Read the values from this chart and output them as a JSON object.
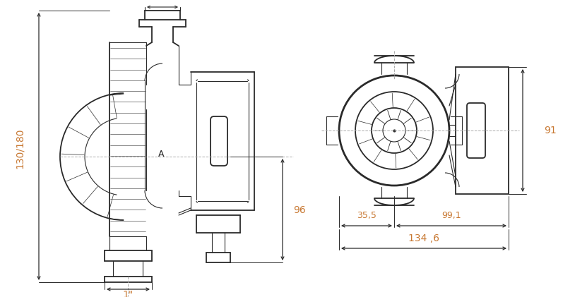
{
  "bg_color": "#ffffff",
  "line_color": "#2a2a2a",
  "dim_color": "#c87832",
  "gray_color": "#aaaaaa",
  "figsize": [
    8.31,
    4.21
  ],
  "dpi": 100,
  "labels": {
    "height_left": "130/180",
    "dim_96": "96",
    "dim_1inch": "1\"",
    "dim_355": "35,5",
    "dim_991": "99,1",
    "dim_1346": "134 ,6",
    "dim_91": "91",
    "label_A": "A"
  }
}
